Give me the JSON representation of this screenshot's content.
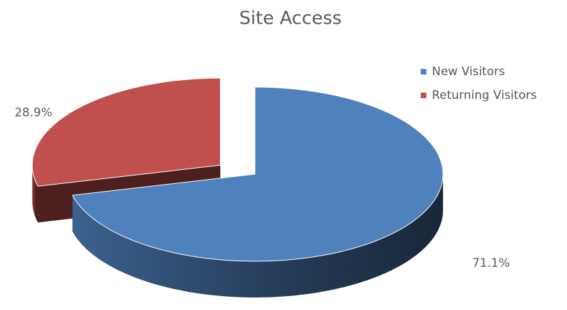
{
  "chart_data": {
    "type": "pie",
    "title": "Site Access",
    "categories": [
      "New Visitors",
      "Returning Visitors"
    ],
    "values": [
      71.1,
      28.9
    ],
    "value_labels": [
      "71.1%",
      "28.9%"
    ],
    "colors": [
      "#4f81bd",
      "#c0504d"
    ],
    "legend": "right"
  }
}
